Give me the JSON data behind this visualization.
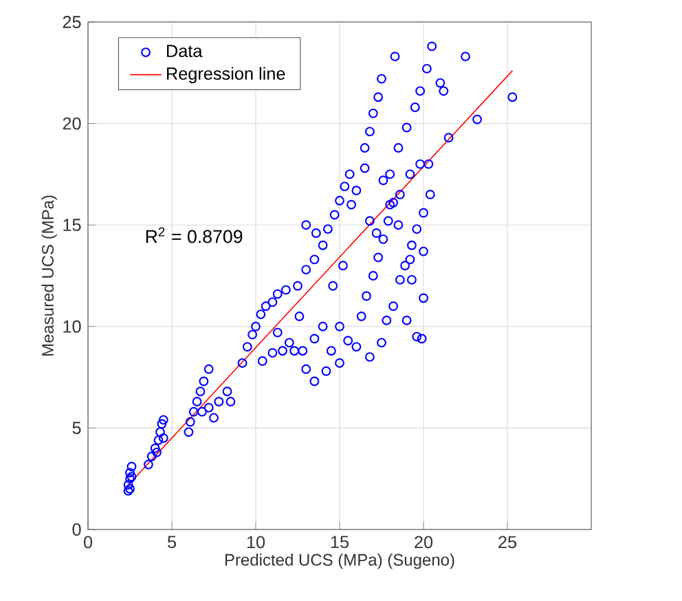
{
  "chart_data": {
    "type": "scatter",
    "xlabel": "Predicted UCS (MPa) (Sugeno)",
    "ylabel": "Measured UCS (MPa)",
    "xlim": [
      0,
      30
    ],
    "xticks": [
      0,
      5,
      10,
      15,
      20,
      25
    ],
    "ylim": [
      0,
      25
    ],
    "yticks": [
      0,
      5,
      10,
      15,
      20,
      25
    ],
    "grid": true,
    "legend": "top left",
    "annotations": [
      "R$^{2}$ = 0.8709"
    ],
    "series": [
      {
        "name": "Data",
        "marker": "circle",
        "color": "#0000ff",
        "x": [
          2.4,
          2.4,
          2.5,
          2.5,
          2.6,
          2.5,
          2.6,
          3.6,
          3.8,
          4.0,
          4.2,
          4.3,
          4.4,
          4.5,
          4.1,
          4.5,
          6.0,
          6.1,
          6.3,
          6.5,
          6.7,
          6.9,
          7.2,
          6.8,
          7.2,
          7.8,
          8.3,
          7.5,
          8.5,
          9.2,
          9.5,
          9.8,
          10.0,
          10.3,
          10.6,
          11.0,
          11.3,
          11.8,
          10.4,
          11.0,
          11.6,
          12.0,
          11.3,
          12.3,
          12.6,
          13.0,
          12.8,
          13.5,
          14.0,
          12.5,
          13.0,
          13.5,
          14.0,
          14.3,
          14.7,
          15.0,
          15.3,
          15.6,
          13.0,
          13.6,
          15.7,
          16.0,
          16.5,
          15.2,
          14.6,
          13.5,
          14.2,
          15.0,
          15.5,
          16.0,
          16.3,
          16.6,
          17.0,
          17.3,
          17.6,
          17.9,
          18.2,
          15.0,
          14.5,
          16.8,
          17.5,
          17.8,
          18.2,
          18.6,
          18.9,
          19.3,
          19.6,
          20.0,
          19.0,
          19.6,
          20.0,
          19.3,
          20.0,
          19.9,
          16.5,
          16.8,
          17.0,
          17.3,
          17.5,
          18.3,
          18.0,
          18.5,
          19.0,
          19.5,
          19.8,
          20.2,
          20.5,
          21.0,
          21.2,
          21.5,
          22.5,
          23.2,
          25.3,
          18.6,
          18.0,
          17.6,
          19.2,
          19.8,
          20.3,
          16.8,
          17.2,
          18.5,
          20.4,
          19.2
        ],
        "values": [
          1.9,
          2.2,
          2.5,
          2.8,
          3.1,
          2.0,
          2.6,
          3.2,
          3.6,
          4.0,
          4.4,
          4.8,
          5.2,
          5.4,
          3.8,
          4.5,
          4.8,
          5.3,
          5.8,
          6.3,
          6.8,
          7.3,
          7.9,
          5.8,
          6.0,
          6.3,
          6.8,
          5.5,
          6.3,
          8.2,
          9.0,
          9.6,
          10.0,
          10.6,
          11.0,
          11.2,
          11.6,
          11.8,
          8.3,
          8.7,
          8.8,
          9.2,
          9.7,
          8.8,
          10.5,
          7.9,
          8.8,
          9.4,
          10.0,
          12.0,
          12.8,
          13.3,
          14.0,
          14.8,
          15.5,
          16.2,
          16.9,
          17.5,
          15.0,
          14.6,
          16.0,
          16.7,
          17.8,
          13.0,
          12.0,
          7.3,
          7.8,
          8.2,
          9.3,
          9.0,
          10.5,
          11.5,
          12.5,
          13.4,
          14.3,
          15.2,
          16.1,
          10.0,
          8.8,
          8.5,
          9.2,
          10.3,
          11.0,
          12.3,
          13.0,
          14.0,
          14.8,
          15.6,
          10.3,
          9.5,
          11.4,
          12.3,
          13.7,
          9.4,
          18.8,
          19.6,
          20.5,
          21.3,
          22.2,
          23.3,
          17.5,
          18.8,
          19.8,
          20.8,
          21.6,
          22.7,
          23.8,
          22.0,
          21.6,
          19.3,
          23.3,
          20.2,
          21.3,
          16.5,
          16.0,
          17.2,
          17.5,
          18.0,
          18.0,
          15.2,
          14.6,
          15.0,
          16.5,
          13.3
        ]
      },
      {
        "name": "Regression line",
        "type": "line",
        "marker": "none",
        "line_style": "solid",
        "color": "#ff0000",
        "x": [
          2.3,
          25.3
        ],
        "values": [
          2.1,
          22.6
        ]
      }
    ]
  }
}
